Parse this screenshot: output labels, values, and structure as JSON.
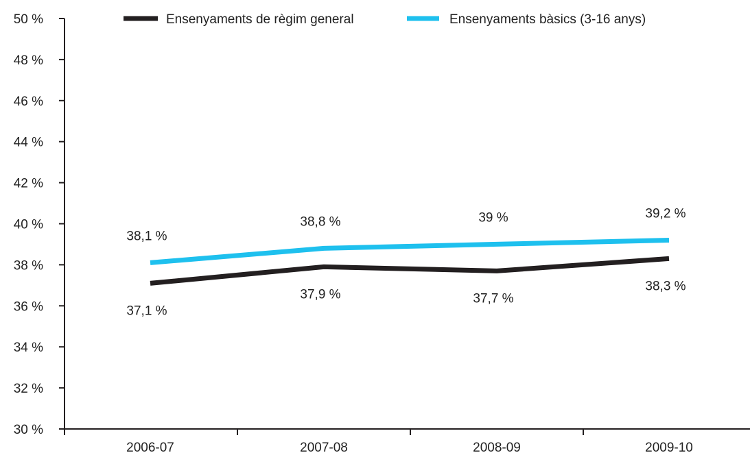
{
  "chart_data": {
    "type": "line",
    "categories": [
      "2006-07",
      "2007-08",
      "2008-09",
      "2009-10"
    ],
    "series": [
      {
        "name": "Ensenyaments de règim general",
        "values": [
          37.1,
          37.9,
          37.7,
          38.3
        ],
        "labels": [
          "37,1 %",
          "37,9 %",
          "37,7 %",
          "38,3 %"
        ],
        "color": "#231f20"
      },
      {
        "name": "Ensenyaments bàsics (3-16 anys)",
        "values": [
          38.1,
          38.8,
          39.0,
          39.2
        ],
        "labels": [
          "38,1 %",
          "38,8 %",
          "39 %",
          "39,2 %"
        ],
        "color": "#1ec0ee"
      }
    ],
    "ylim": [
      30,
      50
    ],
    "yticks": [
      30,
      32,
      34,
      36,
      38,
      40,
      42,
      44,
      46,
      48,
      50
    ],
    "ytick_labels": [
      "30 %",
      "32 %",
      "34 %",
      "36 %",
      "38 %",
      "40 %",
      "42 %",
      "44 %",
      "46 %",
      "48 %",
      "50 %"
    ],
    "xlabel": "",
    "ylabel": "",
    "grid": false,
    "legend_position": "top"
  }
}
